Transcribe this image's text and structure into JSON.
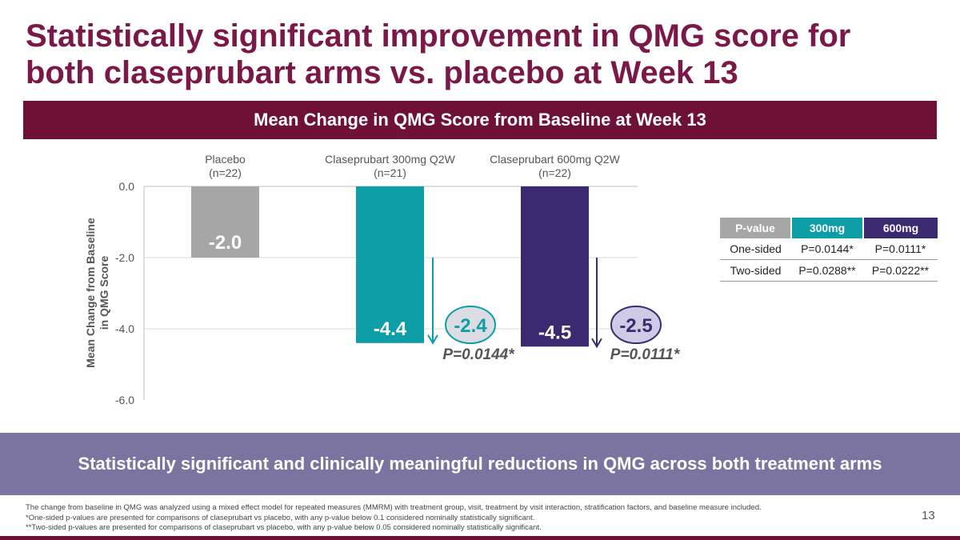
{
  "title": "Statistically significant improvement in QMG score for both claseprubart arms vs. placebo at Week 13",
  "banner": "Mean Change in QMG Score from Baseline at Week 13",
  "chart_data": {
    "type": "bar",
    "title": "Mean Change in QMG Score from Baseline at Week 13",
    "ylabel": "Mean Change from Baseline in QMG Score",
    "ylim": [
      -6.0,
      0.0
    ],
    "yticks": [
      "0.0",
      "-2.0",
      "-4.0",
      "-6.0"
    ],
    "grid": true,
    "categories": [
      {
        "name": "Placebo",
        "n": "(n=22)"
      },
      {
        "name": "Claseprubart 300mg Q2W",
        "n": "(n=21)"
      },
      {
        "name": "Claseprubart 600mg Q2W",
        "n": "(n=22)"
      }
    ],
    "values": [
      -2.0,
      -4.4,
      -4.5
    ],
    "labels": [
      "-2.0",
      "-4.4",
      "-4.5"
    ],
    "colors": [
      "#a6a6a6",
      "#0e9ea8",
      "#3b2a70"
    ],
    "differences": [
      {
        "label": "-2.4",
        "p": "P=0.0144*",
        "color": "#0e9ea8",
        "fill": "#dcdde3"
      },
      {
        "label": "-2.5",
        "p": "P=0.0111*",
        "color": "#3b2a70",
        "fill": "#cfcbe6"
      }
    ]
  },
  "pvalue_table": {
    "headers": [
      "P-value",
      "300mg",
      "600mg"
    ],
    "header_colors": [
      "#a6a6a6",
      "#0e9ea8",
      "#3b2a70"
    ],
    "rows": [
      [
        "One-sided",
        "P=0.0144*",
        "P=0.0111*"
      ],
      [
        "Two-sided",
        "P=0.0288**",
        "P=0.0222**"
      ]
    ]
  },
  "conclusion": "Statistically significant and clinically meaningful reductions in QMG across both treatment arms",
  "footnotes": [
    "The change from baseline in QMG was analyzed using a mixed effect model for repeated measures (MMRM) with treatment group, visit, treatment by visit interaction, stratification factors, and baseline measure included.",
    "*One-sided p-values are presented for comparisons of claseprubart vs placebo, with any p-value below 0.1 considered nominally statistically significant.",
    "**Two-sided p-values are presented for comparisons of claseprubart vs placebo, with any p-value below 0.05 considered nominally statistically significant."
  ],
  "page_number": "13"
}
